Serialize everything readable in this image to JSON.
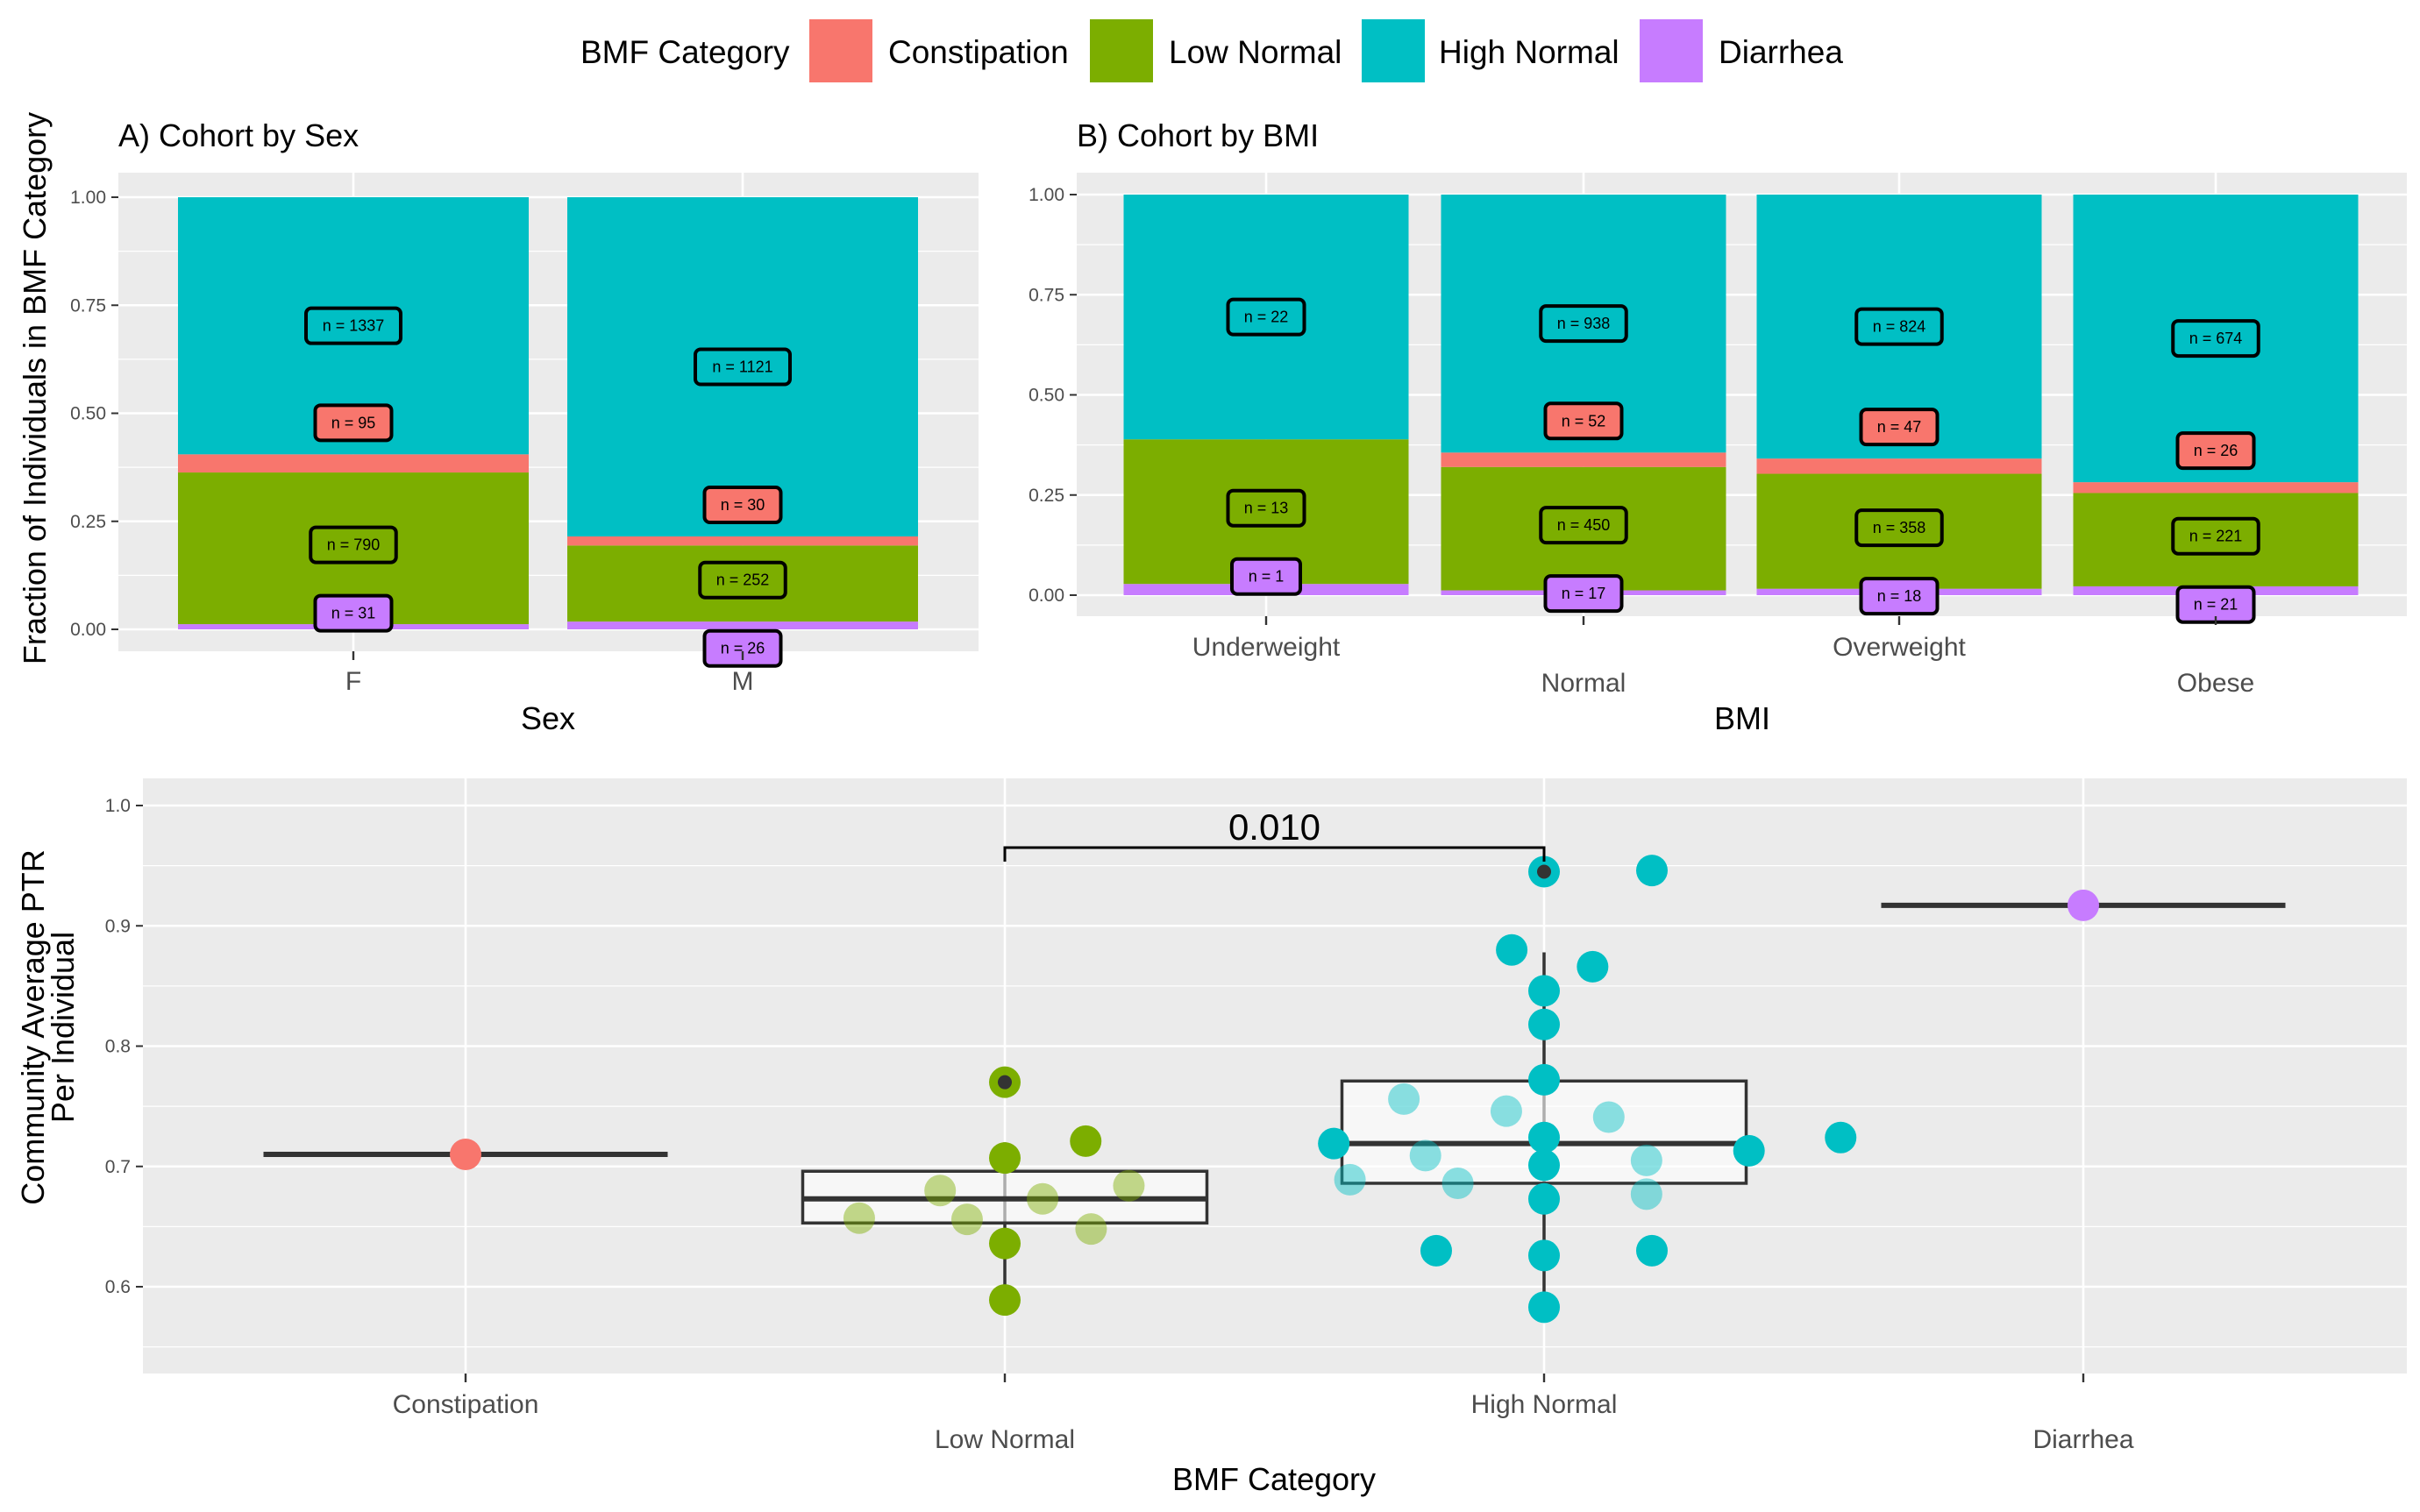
{
  "legend": {
    "title": "BMF Category",
    "items": [
      {
        "label": "Constipation",
        "color": "#F8766D"
      },
      {
        "label": "Low Normal",
        "color": "#7CAE00"
      },
      {
        "label": "High Normal",
        "color": "#00BFC4"
      },
      {
        "label": "Diarrhea",
        "color": "#C77CFF"
      }
    ]
  },
  "panel_bg": "#EBEBEB",
  "shared_ylabel": "Fraction of Individuals in BMF Category",
  "chart_data": [
    {
      "type": "bar",
      "stacked": true,
      "title": "A) Cohort by Sex",
      "xlabel": "Sex",
      "ylabel": "Fraction of Individuals in BMF Category",
      "ylim": [
        0,
        1
      ],
      "yticks": [
        "0.00",
        "0.25",
        "0.50",
        "0.75",
        "1.00"
      ],
      "categories": [
        "F",
        "M"
      ],
      "series": [
        {
          "name": "Diarrhea",
          "values": [
            0.012,
            0.018
          ],
          "counts": [
            "n = 31",
            "n = 26"
          ]
        },
        {
          "name": "Low Normal",
          "values": [
            0.351,
            0.176
          ],
          "counts": [
            "n = 790",
            "n = 252"
          ]
        },
        {
          "name": "Constipation",
          "values": [
            0.042,
            0.021
          ],
          "counts": [
            "n = 95",
            "n = 30"
          ]
        },
        {
          "name": "High Normal",
          "values": [
            0.595,
            0.785
          ],
          "counts": [
            "n = 1337",
            "n = 1121"
          ]
        }
      ]
    },
    {
      "type": "bar",
      "stacked": true,
      "title": "B) Cohort by BMI",
      "xlabel": "BMI",
      "ylim": [
        0,
        1
      ],
      "yticks": [
        "0.00",
        "0.25",
        "0.50",
        "0.75",
        "1.00"
      ],
      "categories": [
        "Underweight",
        "Normal",
        "Overweight",
        "Obese"
      ],
      "series": [
        {
          "name": "Diarrhea",
          "values": [
            0.028,
            0.012,
            0.016,
            0.022
          ],
          "counts": [
            "n = 1",
            "n = 17",
            "n = 18",
            "n = 21"
          ]
        },
        {
          "name": "Low Normal",
          "values": [
            0.361,
            0.308,
            0.287,
            0.233
          ],
          "counts": [
            "n = 13",
            "n = 450",
            "n = 358",
            "n = 221"
          ]
        },
        {
          "name": "Constipation",
          "values": [
            0.0,
            0.036,
            0.038,
            0.027
          ],
          "counts": [
            "",
            "n = 52",
            "n = 47",
            "n = 26"
          ]
        },
        {
          "name": "High Normal",
          "values": [
            0.611,
            0.644,
            0.659,
            0.718
          ],
          "counts": [
            "n = 22",
            "n = 938",
            "n = 824",
            "n = 674"
          ]
        }
      ]
    },
    {
      "type": "scatter",
      "subtype": "box-jitter",
      "xlabel": "BMF Category",
      "ylabel": [
        "Community Average PTR",
        "Per Individual"
      ],
      "ylim": [
        0.55,
        1.0
      ],
      "yticks": [
        "0.6",
        "0.7",
        "0.8",
        "0.9",
        "1.0"
      ],
      "categories": [
        "Constipation",
        "Low Normal",
        "High Normal",
        "Diarrhea"
      ],
      "significance": {
        "from": "Low Normal",
        "to": "High Normal",
        "label": "0.010"
      },
      "boxes": [
        {
          "category": "Constipation",
          "q1": 0.71,
          "median": 0.71,
          "q3": 0.71,
          "whisker_low": 0.71,
          "whisker_high": 0.71
        },
        {
          "category": "Low Normal",
          "q1": 0.653,
          "median": 0.673,
          "q3": 0.696,
          "whisker_low": 0.588,
          "whisker_high": 0.72,
          "outliers": [
            0.77
          ]
        },
        {
          "category": "High Normal",
          "q1": 0.686,
          "median": 0.719,
          "q3": 0.771,
          "whisker_low": 0.585,
          "whisker_high": 0.878,
          "outliers": [
            0.945
          ]
        },
        {
          "category": "Diarrhea",
          "q1": 0.917,
          "median": 0.917,
          "q3": 0.917,
          "whisker_low": 0.917,
          "whisker_high": 0.917
        }
      ],
      "points": [
        {
          "category": "Constipation",
          "x": 0.0,
          "y": 0.71
        },
        {
          "category": "Low Normal",
          "x": -0.27,
          "y": 0.657
        },
        {
          "category": "Low Normal",
          "x": -0.12,
          "y": 0.68
        },
        {
          "category": "Low Normal",
          "x": -0.07,
          "y": 0.656
        },
        {
          "category": "Low Normal",
          "x": 0.0,
          "y": 0.636
        },
        {
          "category": "Low Normal",
          "x": 0.0,
          "y": 0.707
        },
        {
          "category": "Low Normal",
          "x": 0.0,
          "y": 0.77
        },
        {
          "category": "Low Normal",
          "x": 0.0,
          "y": 0.589
        },
        {
          "category": "Low Normal",
          "x": 0.07,
          "y": 0.673
        },
        {
          "category": "Low Normal",
          "x": 0.15,
          "y": 0.721
        },
        {
          "category": "Low Normal",
          "x": 0.16,
          "y": 0.648
        },
        {
          "category": "Low Normal",
          "x": 0.23,
          "y": 0.684
        },
        {
          "category": "High Normal",
          "x": -0.39,
          "y": 0.719
        },
        {
          "category": "High Normal",
          "x": -0.36,
          "y": 0.689
        },
        {
          "category": "High Normal",
          "x": -0.26,
          "y": 0.756
        },
        {
          "category": "High Normal",
          "x": -0.22,
          "y": 0.709
        },
        {
          "category": "High Normal",
          "x": -0.2,
          "y": 0.63
        },
        {
          "category": "High Normal",
          "x": -0.16,
          "y": 0.686
        },
        {
          "category": "High Normal",
          "x": -0.07,
          "y": 0.746
        },
        {
          "category": "High Normal",
          "x": -0.06,
          "y": 0.88
        },
        {
          "category": "High Normal",
          "x": 0.0,
          "y": 0.945
        },
        {
          "category": "High Normal",
          "x": 0.0,
          "y": 0.846
        },
        {
          "category": "High Normal",
          "x": 0.0,
          "y": 0.818
        },
        {
          "category": "High Normal",
          "x": 0.0,
          "y": 0.772
        },
        {
          "category": "High Normal",
          "x": 0.0,
          "y": 0.724
        },
        {
          "category": "High Normal",
          "x": 0.0,
          "y": 0.701
        },
        {
          "category": "High Normal",
          "x": 0.0,
          "y": 0.673
        },
        {
          "category": "High Normal",
          "x": 0.0,
          "y": 0.626
        },
        {
          "category": "High Normal",
          "x": 0.0,
          "y": 0.583
        },
        {
          "category": "High Normal",
          "x": 0.09,
          "y": 0.866
        },
        {
          "category": "High Normal",
          "x": 0.12,
          "y": 0.741
        },
        {
          "category": "High Normal",
          "x": 0.19,
          "y": 0.705
        },
        {
          "category": "High Normal",
          "x": 0.19,
          "y": 0.677
        },
        {
          "category": "High Normal",
          "x": 0.2,
          "y": 0.63
        },
        {
          "category": "High Normal",
          "x": 0.2,
          "y": 0.946
        },
        {
          "category": "High Normal",
          "x": 0.38,
          "y": 0.713
        },
        {
          "category": "High Normal",
          "x": 0.55,
          "y": 0.724
        },
        {
          "category": "Diarrhea",
          "x": 0.0,
          "y": 0.917
        }
      ]
    }
  ]
}
